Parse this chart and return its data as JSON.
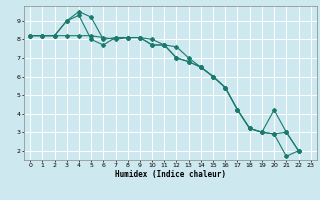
{
  "xlabel": "Humidex (Indice chaleur)",
  "background_color": "#cde8ee",
  "grid_color": "#ffffff",
  "line_color": "#1a7a6e",
  "xlim": [
    -0.5,
    23.5
  ],
  "ylim": [
    1.5,
    9.8
  ],
  "yticks": [
    2,
    3,
    4,
    5,
    6,
    7,
    8,
    9
  ],
  "xticks": [
    0,
    1,
    2,
    3,
    4,
    5,
    6,
    7,
    8,
    9,
    10,
    11,
    12,
    13,
    14,
    15,
    16,
    17,
    18,
    19,
    20,
    21,
    22,
    23
  ],
  "line1_x": [
    0,
    1,
    2,
    3,
    4,
    5,
    6,
    7,
    8,
    9,
    10,
    11,
    12,
    13,
    14,
    15,
    16,
    17,
    18,
    19,
    20,
    21,
    22
  ],
  "line1_y": [
    8.2,
    8.2,
    8.2,
    9.0,
    9.3,
    8.0,
    7.7,
    8.1,
    8.1,
    8.1,
    7.7,
    7.7,
    7.0,
    6.8,
    6.5,
    6.0,
    5.4,
    4.2,
    3.2,
    3.0,
    2.9,
    1.7,
    2.0
  ],
  "line2_x": [
    0,
    1,
    2,
    3,
    4,
    5,
    6,
    7,
    8,
    9,
    10,
    11,
    12,
    13,
    14,
    15,
    16,
    17,
    18,
    19,
    20,
    21,
    22
  ],
  "line2_y": [
    8.2,
    8.2,
    8.2,
    9.0,
    9.5,
    9.2,
    8.0,
    8.1,
    8.1,
    8.1,
    8.0,
    7.7,
    7.6,
    7.0,
    6.5,
    6.0,
    5.4,
    4.2,
    3.2,
    3.0,
    4.2,
    3.0,
    2.0
  ],
  "line3_x": [
    0,
    1,
    2,
    3,
    4,
    5,
    6,
    7,
    8,
    9,
    10,
    11,
    12,
    13,
    14,
    15,
    16,
    17,
    18,
    19,
    20,
    21,
    22
  ],
  "line3_y": [
    8.2,
    8.2,
    8.2,
    8.2,
    8.2,
    8.2,
    8.1,
    8.0,
    8.1,
    8.1,
    7.7,
    7.7,
    7.0,
    6.8,
    6.5,
    6.0,
    5.4,
    4.2,
    3.2,
    3.0,
    2.9,
    3.0,
    2.0
  ],
  "markersize": 2.0,
  "linewidth": 0.8
}
